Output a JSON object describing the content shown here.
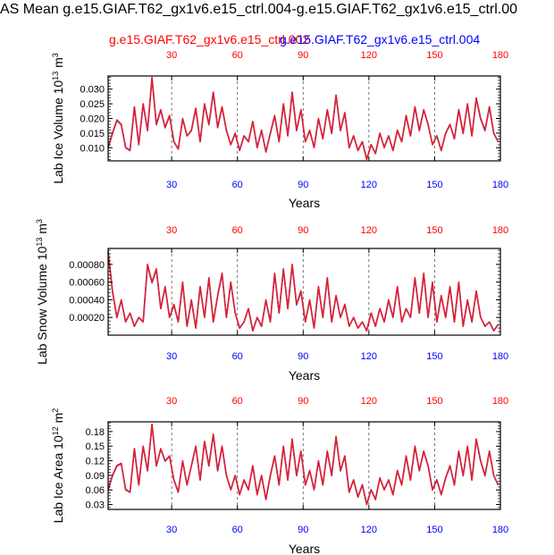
{
  "page_title": "AS Mean g.e15.GIAF.T62_gx1v6.e15_ctrl.004-g.e15.GIAF.T62_gx1v6.e15_ctrl.00",
  "case_labels": {
    "red": "g.e15.GIAF.T62_gx1v6.e15_ctrl.002",
    "blue": "g.e15.GIAF.T62_gx1v6.e15_ctrl.004"
  },
  "colors": {
    "red": "#ff0000",
    "blue": "#0000ff",
    "line_red": "#e0202e",
    "line_blue": "#3b3bd0",
    "grid": "#555555"
  },
  "chart_data": [
    {
      "type": "line",
      "xlabel": "Years",
      "ylabel": "Lab Ice Volume 10^13 m^3",
      "ylabel_base": "Lab Ice Volume 10",
      "ylabel_exp": "13",
      "ylabel_unit": "m",
      "ylabel_unit_exp": "3",
      "xlim": [
        1,
        180
      ],
      "ylim": [
        0.0055,
        0.0345
      ],
      "yticks": [
        0.01,
        0.015,
        0.02,
        0.025,
        0.03
      ],
      "ytick_labels": [
        "0.010",
        "0.015",
        "0.020",
        "0.025",
        "0.030"
      ],
      "top_xticks": [
        "30",
        "60",
        "90",
        "120",
        "150",
        "180"
      ],
      "bottom_xticks": [
        "30",
        "60",
        "90",
        "120",
        "150",
        "180"
      ],
      "dashed_x": [
        30,
        60,
        90,
        120,
        150
      ],
      "x": [
        1,
        3,
        5,
        7,
        9,
        11,
        13,
        15,
        17,
        19,
        21,
        23,
        25,
        27,
        29,
        31,
        33,
        35,
        37,
        39,
        41,
        43,
        45,
        47,
        49,
        51,
        53,
        55,
        57,
        59,
        61,
        63,
        65,
        67,
        69,
        71,
        73,
        75,
        77,
        79,
        81,
        83,
        85,
        87,
        89,
        91,
        93,
        95,
        97,
        99,
        101,
        103,
        105,
        107,
        109,
        111,
        113,
        115,
        117,
        119,
        121,
        123,
        125,
        127,
        129,
        131,
        133,
        135,
        137,
        139,
        141,
        143,
        145,
        147,
        149,
        151,
        153,
        155,
        157,
        159,
        161,
        163,
        165,
        167,
        169,
        171,
        173,
        175,
        177,
        179
      ],
      "series": [
        {
          "name": "g.e15.GIAF.T62_gx1v6.e15_ctrl.002",
          "color": "#e0202e",
          "values": [
            0.01,
            0.015,
            0.0195,
            0.018,
            0.01,
            0.009,
            0.024,
            0.011,
            0.025,
            0.016,
            0.034,
            0.018,
            0.023,
            0.017,
            0.021,
            0.012,
            0.0095,
            0.02,
            0.014,
            0.016,
            0.0235,
            0.012,
            0.025,
            0.018,
            0.029,
            0.017,
            0.024,
            0.016,
            0.011,
            0.015,
            0.009,
            0.014,
            0.012,
            0.019,
            0.01,
            0.016,
            0.0085,
            0.015,
            0.021,
            0.012,
            0.025,
            0.014,
            0.029,
            0.016,
            0.023,
            0.012,
            0.016,
            0.01,
            0.02,
            0.013,
            0.023,
            0.015,
            0.028,
            0.016,
            0.022,
            0.01,
            0.014,
            0.009,
            0.012,
            0.006,
            0.011,
            0.008,
            0.015,
            0.01,
            0.014,
            0.009,
            0.016,
            0.012,
            0.021,
            0.014,
            0.024,
            0.016,
            0.023,
            0.018,
            0.011,
            0.014,
            0.009,
            0.015,
            0.018,
            0.013,
            0.023,
            0.015,
            0.025,
            0.014,
            0.027,
            0.02,
            0.016,
            0.024,
            0.015,
            0.012
          ]
        },
        {
          "name": "g.e15.GIAF.T62_gx1v6.e15_ctrl.004",
          "color": "#3b3bd0",
          "values": [
            0.01,
            0.0148,
            0.0193,
            0.0178,
            0.0101,
            0.0091,
            0.0238,
            0.0112,
            0.0248,
            0.0158,
            0.0336,
            0.0178,
            0.0228,
            0.0168,
            0.0208,
            0.0121,
            0.0096,
            0.0198,
            0.0141,
            0.0158,
            0.0233,
            0.0121,
            0.0248,
            0.0178,
            0.0287,
            0.0168,
            0.0238,
            0.0158,
            0.0111,
            0.0148,
            0.0091,
            0.0141,
            0.0121,
            0.0188,
            0.0101,
            0.0158,
            0.0086,
            0.0148,
            0.0208,
            0.0121,
            0.0248,
            0.0141,
            0.0287,
            0.0158,
            0.0228,
            0.0121,
            0.0158,
            0.0101,
            0.0198,
            0.0131,
            0.0228,
            0.0148,
            0.0277,
            0.0158,
            0.0218,
            0.0101,
            0.0141,
            0.0091,
            0.0121,
            0.0061,
            0.0111,
            0.0081,
            0.0148,
            0.0101,
            0.0141,
            0.0091,
            0.0158,
            0.0121,
            0.0208,
            0.0141,
            0.0238,
            0.0158,
            0.0228,
            0.0178,
            0.0111,
            0.0141,
            0.0091,
            0.0148,
            0.0178,
            0.0131,
            0.0228,
            0.0148,
            0.0248,
            0.0141,
            0.0267,
            0.0198,
            0.0158,
            0.0238,
            0.0148,
            0.0121
          ]
        }
      ]
    },
    {
      "type": "line",
      "xlabel": "Years",
      "ylabel": "Lab Snow Volume 10^13 m^3",
      "ylabel_base": "Lab Snow Volume 10",
      "ylabel_exp": "13",
      "ylabel_unit": "m",
      "ylabel_unit_exp": "3",
      "xlim": [
        1,
        180
      ],
      "ylim": [
        0.0,
        0.00098
      ],
      "yticks": [
        0.0002,
        0.0004,
        0.0006,
        0.0008
      ],
      "ytick_labels": [
        "0.00020",
        "0.00040",
        "0.00060",
        "0.00080"
      ],
      "top_xticks": [
        "30",
        "60",
        "90",
        "120",
        "150",
        "180"
      ],
      "bottom_xticks": [
        "30",
        "60",
        "90",
        "120",
        "150",
        "180"
      ],
      "dashed_x": [
        30,
        60,
        90,
        120,
        150
      ],
      "x": [
        1,
        3,
        5,
        7,
        9,
        11,
        13,
        15,
        17,
        19,
        21,
        23,
        25,
        27,
        29,
        31,
        33,
        35,
        37,
        39,
        41,
        43,
        45,
        47,
        49,
        51,
        53,
        55,
        57,
        59,
        61,
        63,
        65,
        67,
        69,
        71,
        73,
        75,
        77,
        79,
        81,
        83,
        85,
        87,
        89,
        91,
        93,
        95,
        97,
        99,
        101,
        103,
        105,
        107,
        109,
        111,
        113,
        115,
        117,
        119,
        121,
        123,
        125,
        127,
        129,
        131,
        133,
        135,
        137,
        139,
        141,
        143,
        145,
        147,
        149,
        151,
        153,
        155,
        157,
        159,
        161,
        163,
        165,
        167,
        169,
        171,
        173,
        175,
        177,
        179
      ],
      "series": [
        {
          "name": "g.e15.GIAF.T62_gx1v6.e15_ctrl.002",
          "color": "#e0202e",
          "values": [
            0.00095,
            0.0005,
            0.0002,
            0.0004,
            0.00015,
            0.00025,
            0.0001,
            0.0002,
            0.00015,
            0.0008,
            0.0006,
            0.00075,
            0.0003,
            0.00055,
            0.0002,
            0.00035,
            0.00015,
            0.0006,
            0.0001,
            0.0004,
            8e-05,
            0.00055,
            0.0002,
            0.00065,
            0.00015,
            0.00045,
            0.0007,
            0.0002,
            0.0006,
            0.00025,
            8e-05,
            0.00015,
            0.0003,
            5e-05,
            0.0002,
            0.0001,
            0.0004,
            0.00015,
            0.0007,
            0.00025,
            0.00075,
            0.0003,
            0.0008,
            0.00035,
            0.0005,
            0.00015,
            0.0004,
            8e-05,
            0.00055,
            0.0002,
            0.00065,
            0.00015,
            0.00045,
            0.0002,
            0.00035,
            0.0001,
            0.0002,
            8e-05,
            0.00015,
            5e-05,
            0.00025,
            0.0001,
            0.0003,
            0.00015,
            0.0004,
            0.0002,
            0.00055,
            0.00015,
            0.0003,
            0.0002,
            0.00065,
            0.00025,
            0.0007,
            0.0002,
            0.0006,
            0.00015,
            0.00045,
            0.0002,
            0.00055,
            0.00015,
            0.0006,
            0.0001,
            0.0004,
            0.00015,
            0.0005,
            0.0002,
            0.0001,
            0.00015,
            5e-05,
            0.00012
          ]
        },
        {
          "name": "g.e15.GIAF.T62_gx1v6.e15_ctrl.004",
          "color": "#3b3bd0",
          "values": [
            0.00094,
            0.00049,
            0.0002,
            0.00039,
            0.00015,
            0.00025,
            0.0001,
            0.0002,
            0.00015,
            0.00079,
            0.00059,
            0.00074,
            0.0003,
            0.00054,
            0.0002,
            0.00034,
            0.00015,
            0.00059,
            0.0001,
            0.00039,
            8e-05,
            0.00054,
            0.0002,
            0.00064,
            0.00015,
            0.00044,
            0.00069,
            0.0002,
            0.00059,
            0.00025,
            8e-05,
            0.00015,
            0.0003,
            5e-05,
            0.0002,
            0.0001,
            0.00039,
            0.00015,
            0.00069,
            0.00025,
            0.00074,
            0.0003,
            0.00079,
            0.00034,
            0.00049,
            0.00015,
            0.00039,
            8e-05,
            0.00054,
            0.0002,
            0.00064,
            0.00015,
            0.00044,
            0.0002,
            0.00034,
            0.0001,
            0.0002,
            8e-05,
            0.00015,
            5e-05,
            0.00025,
            0.0001,
            0.0003,
            0.00015,
            0.00039,
            0.0002,
            0.00054,
            0.00015,
            0.0003,
            0.0002,
            0.00064,
            0.00025,
            0.00069,
            0.0002,
            0.00059,
            0.00015,
            0.00044,
            0.0002,
            0.00054,
            0.00015,
            0.00059,
            0.0001,
            0.00039,
            0.00015,
            0.00049,
            0.0002,
            0.0001,
            0.00015,
            5e-05,
            0.00012
          ]
        }
      ]
    },
    {
      "type": "line",
      "xlabel": "Years",
      "ylabel": "Lab Ice Area 10^12 m^2",
      "ylabel_base": "Lab Ice Area 10",
      "ylabel_exp": "12",
      "ylabel_unit": "m",
      "ylabel_unit_exp": "2",
      "xlim": [
        1,
        180
      ],
      "ylim": [
        0.02,
        0.2
      ],
      "yticks": [
        0.03,
        0.06,
        0.09,
        0.12,
        0.15,
        0.18
      ],
      "ytick_labels": [
        "0.03",
        "0.06",
        "0.09",
        "0.12",
        "0.15",
        "0.18"
      ],
      "top_xticks": [
        "30",
        "60",
        "90",
        "120",
        "150",
        "180"
      ],
      "bottom_xticks": [
        "30",
        "60",
        "90",
        "120",
        "150",
        "180"
      ],
      "dashed_x": [
        30,
        60,
        90,
        120,
        150
      ],
      "x": [
        1,
        3,
        5,
        7,
        9,
        11,
        13,
        15,
        17,
        19,
        21,
        23,
        25,
        27,
        29,
        31,
        33,
        35,
        37,
        39,
        41,
        43,
        45,
        47,
        49,
        51,
        53,
        55,
        57,
        59,
        61,
        63,
        65,
        67,
        69,
        71,
        73,
        75,
        77,
        79,
        81,
        83,
        85,
        87,
        89,
        91,
        93,
        95,
        97,
        99,
        101,
        103,
        105,
        107,
        109,
        111,
        113,
        115,
        117,
        119,
        121,
        123,
        125,
        127,
        129,
        131,
        133,
        135,
        137,
        139,
        141,
        143,
        145,
        147,
        149,
        151,
        153,
        155,
        157,
        159,
        161,
        163,
        165,
        167,
        169,
        171,
        173,
        175,
        177,
        179
      ],
      "series": [
        {
          "name": "g.e15.GIAF.T62_gx1v6.e15_ctrl.002",
          "color": "#e0202e",
          "values": [
            0.06,
            0.09,
            0.11,
            0.115,
            0.06,
            0.055,
            0.145,
            0.07,
            0.15,
            0.1,
            0.195,
            0.11,
            0.145,
            0.12,
            0.13,
            0.08,
            0.055,
            0.12,
            0.07,
            0.11,
            0.15,
            0.08,
            0.16,
            0.11,
            0.175,
            0.1,
            0.15,
            0.09,
            0.06,
            0.09,
            0.05,
            0.08,
            0.06,
            0.11,
            0.05,
            0.09,
            0.04,
            0.09,
            0.13,
            0.07,
            0.15,
            0.08,
            0.165,
            0.09,
            0.14,
            0.07,
            0.1,
            0.06,
            0.12,
            0.07,
            0.14,
            0.09,
            0.17,
            0.1,
            0.13,
            0.055,
            0.08,
            0.045,
            0.07,
            0.03,
            0.06,
            0.04,
            0.085,
            0.06,
            0.08,
            0.05,
            0.1,
            0.07,
            0.13,
            0.08,
            0.15,
            0.1,
            0.14,
            0.11,
            0.06,
            0.08,
            0.05,
            0.085,
            0.11,
            0.07,
            0.14,
            0.09,
            0.15,
            0.08,
            0.165,
            0.12,
            0.09,
            0.14,
            0.09,
            0.07
          ]
        },
        {
          "name": "g.e15.GIAF.T62_gx1v6.e15_ctrl.004",
          "color": "#3b3bd0",
          "values": [
            0.061,
            0.089,
            0.109,
            0.114,
            0.061,
            0.056,
            0.144,
            0.071,
            0.149,
            0.099,
            0.193,
            0.109,
            0.144,
            0.119,
            0.129,
            0.081,
            0.056,
            0.119,
            0.071,
            0.109,
            0.149,
            0.081,
            0.159,
            0.109,
            0.173,
            0.099,
            0.149,
            0.089,
            0.061,
            0.089,
            0.051,
            0.081,
            0.061,
            0.109,
            0.051,
            0.089,
            0.041,
            0.089,
            0.129,
            0.071,
            0.149,
            0.081,
            0.163,
            0.089,
            0.139,
            0.071,
            0.099,
            0.061,
            0.119,
            0.071,
            0.139,
            0.089,
            0.168,
            0.099,
            0.129,
            0.056,
            0.081,
            0.046,
            0.071,
            0.031,
            0.061,
            0.041,
            0.084,
            0.061,
            0.081,
            0.051,
            0.099,
            0.071,
            0.129,
            0.081,
            0.149,
            0.099,
            0.139,
            0.109,
            0.061,
            0.081,
            0.051,
            0.084,
            0.109,
            0.071,
            0.139,
            0.089,
            0.149,
            0.081,
            0.163,
            0.119,
            0.089,
            0.139,
            0.089,
            0.071
          ]
        }
      ]
    }
  ]
}
